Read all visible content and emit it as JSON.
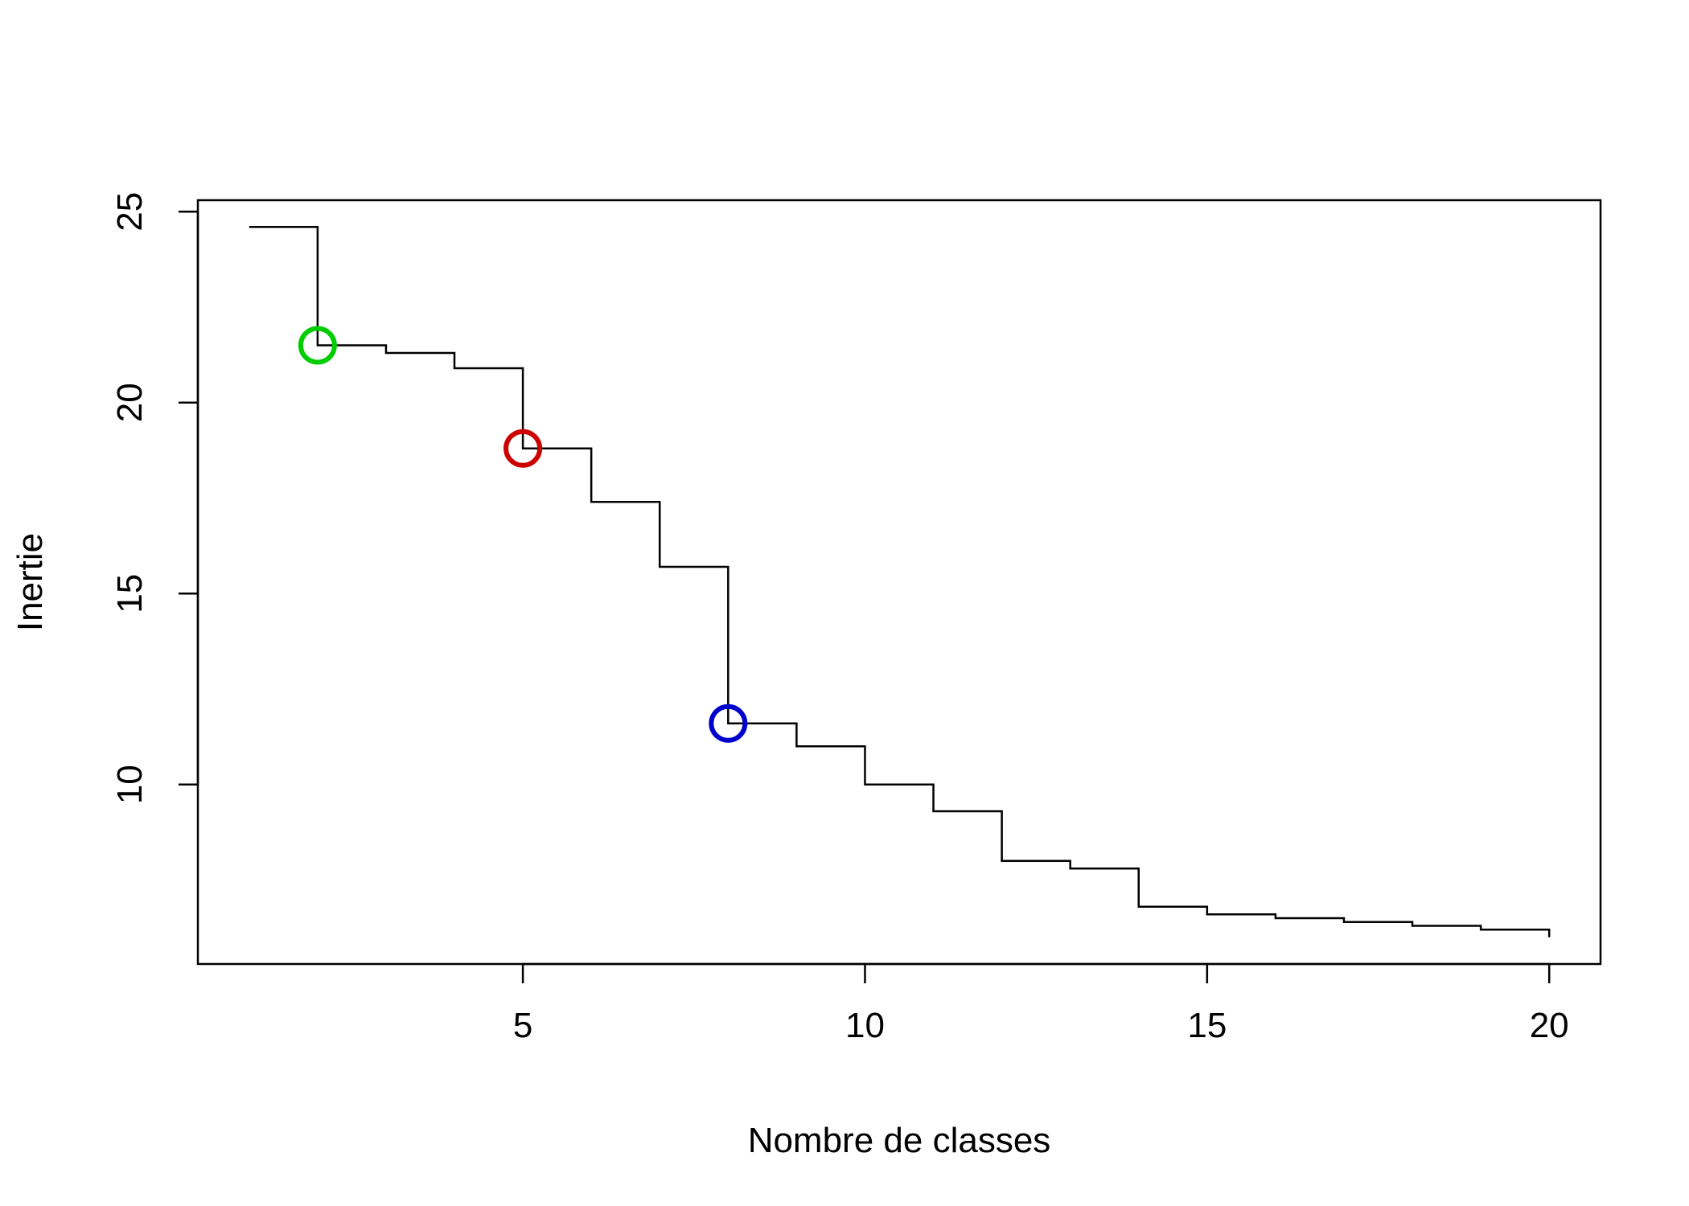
{
  "chart_data": {
    "type": "line",
    "step": true,
    "title": "",
    "xlabel": "Nombre de classes",
    "ylabel": "Inertie",
    "x": [
      1,
      2,
      3,
      4,
      5,
      6,
      7,
      8,
      9,
      10,
      11,
      12,
      13,
      14,
      15,
      16,
      17,
      18,
      19,
      20
    ],
    "series": [
      {
        "values": [
          24.6,
          21.5,
          21.3,
          20.9,
          18.8,
          17.4,
          15.7,
          11.6,
          11.0,
          10.0,
          9.3,
          8.0,
          7.8,
          6.8,
          6.6,
          6.5,
          6.4,
          6.3,
          6.2,
          6.0
        ],
        "color": "#000000"
      }
    ],
    "markers": [
      {
        "x": 2,
        "y": 21.5,
        "color": "#00CD00"
      },
      {
        "x": 5,
        "y": 18.8,
        "color": "#CD0000"
      },
      {
        "x": 8,
        "y": 11.6,
        "color": "#0000CD"
      }
    ],
    "xlim": [
      0.25,
      20.75
    ],
    "ylim": [
      5.3,
      25.3
    ],
    "xticks": [
      5,
      10,
      15,
      20
    ],
    "yticks": [
      10,
      15,
      20,
      25
    ],
    "grid": false,
    "legend": "none"
  }
}
